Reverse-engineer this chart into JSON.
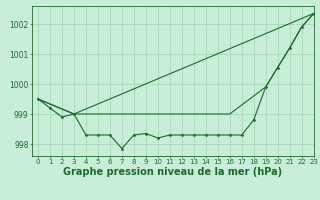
{
  "background_color": "#c8edd8",
  "grid_color": "#a8d8b8",
  "line_color": "#1a6b2a",
  "xlabel": "Graphe pression niveau de la mer (hPa)",
  "xlabel_fontsize": 7,
  "xlim": [
    -0.5,
    23
  ],
  "ylim": [
    997.6,
    1002.6
  ],
  "yticks": [
    998,
    999,
    1000,
    1001,
    1002
  ],
  "xticks": [
    0,
    1,
    2,
    3,
    4,
    5,
    6,
    7,
    8,
    9,
    10,
    11,
    12,
    13,
    14,
    15,
    16,
    17,
    18,
    19,
    20,
    21,
    22,
    23
  ],
  "series1_x": [
    0,
    1,
    2,
    3,
    4,
    5,
    6,
    7,
    8,
    9,
    10,
    11,
    12,
    13,
    14,
    15,
    16,
    17,
    18,
    19,
    20,
    21,
    22,
    23
  ],
  "series1_y": [
    999.5,
    999.2,
    998.9,
    999.0,
    998.3,
    998.3,
    998.3,
    997.85,
    998.3,
    998.35,
    998.2,
    998.3,
    998.3,
    998.3,
    998.3,
    998.3,
    998.3,
    998.3,
    998.8,
    999.9,
    1000.55,
    1001.2,
    1001.9,
    1002.35
  ],
  "series2_x": [
    0,
    3,
    23
  ],
  "series2_y": [
    999.5,
    999.0,
    1002.35
  ],
  "series3_x": [
    0,
    3,
    16,
    19,
    20,
    21,
    22,
    23
  ],
  "series3_y": [
    999.5,
    999.0,
    999.0,
    999.9,
    1000.55,
    1001.2,
    1001.9,
    1002.35
  ]
}
